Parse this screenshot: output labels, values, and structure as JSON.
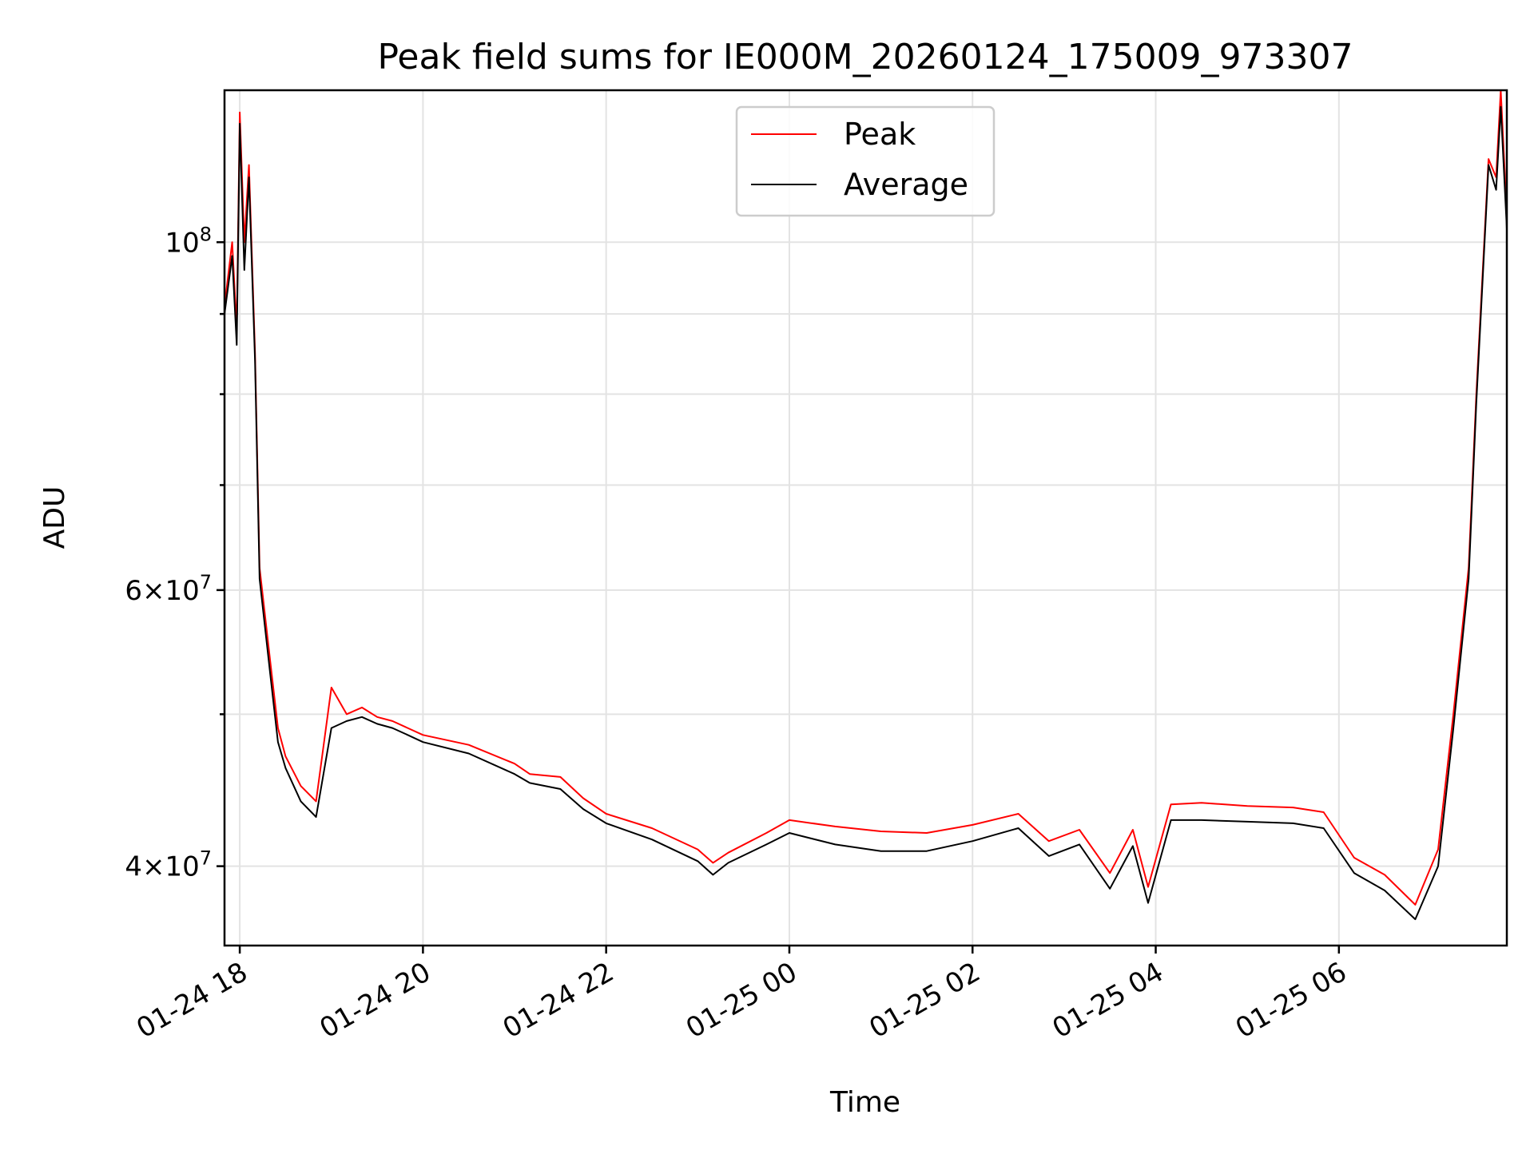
{
  "chart_data": {
    "type": "line",
    "title": "Peak field sums for IE000M_20260124_175009_973307",
    "xlabel": "Time",
    "ylabel": "ADU",
    "yscale": "log",
    "ylim": [
      35600000,
      125000000
    ],
    "xlim": [
      "2026-01-24 17:50",
      "2026-01-25 07:50"
    ],
    "x_ticks": [
      {
        "at": "2026-01-24 18:00",
        "label": "01-24 18"
      },
      {
        "at": "2026-01-24 20:00",
        "label": "01-24 20"
      },
      {
        "at": "2026-01-24 22:00",
        "label": "01-24 22"
      },
      {
        "at": "2026-01-25 00:00",
        "label": "01-25 00"
      },
      {
        "at": "2026-01-25 02:00",
        "label": "01-25 02"
      },
      {
        "at": "2026-01-25 04:00",
        "label": "01-25 04"
      },
      {
        "at": "2026-01-25 06:00",
        "label": "01-25 06"
      }
    ],
    "y_ticks": [
      {
        "value": 40000000,
        "mantissa": "4×10",
        "exp": "7"
      },
      {
        "value": 60000000,
        "mantissa": "6×10",
        "exp": "7"
      },
      {
        "value": 100000000,
        "mantissa": "10",
        "exp": "8"
      }
    ],
    "y_minor_ticks": [
      50000000,
      70000000,
      80000000,
      90000000
    ],
    "grid": true,
    "legend_position": "upper center",
    "series": [
      {
        "name": "Peak",
        "color": "#ff0000",
        "x": [
          "2026-01-24 17:50",
          "2026-01-24 17:55",
          "2026-01-24 17:58",
          "2026-01-24 18:00",
          "2026-01-24 18:03",
          "2026-01-24 18:06",
          "2026-01-24 18:10",
          "2026-01-24 18:13",
          "2026-01-24 18:20",
          "2026-01-24 18:25",
          "2026-01-24 18:30",
          "2026-01-24 18:40",
          "2026-01-24 18:50",
          "2026-01-24 19:00",
          "2026-01-24 19:10",
          "2026-01-24 19:20",
          "2026-01-24 19:30",
          "2026-01-24 19:40",
          "2026-01-24 19:50",
          "2026-01-24 20:00",
          "2026-01-24 20:30",
          "2026-01-24 21:00",
          "2026-01-24 21:10",
          "2026-01-24 21:30",
          "2026-01-24 21:45",
          "2026-01-24 22:00",
          "2026-01-24 22:30",
          "2026-01-24 23:00",
          "2026-01-24 23:10",
          "2026-01-24 23:20",
          "2026-01-24 23:45",
          "2026-01-25 00:00",
          "2026-01-25 00:30",
          "2026-01-25 01:00",
          "2026-01-25 01:30",
          "2026-01-25 02:00",
          "2026-01-25 02:30",
          "2026-01-25 02:50",
          "2026-01-25 03:10",
          "2026-01-25 03:30",
          "2026-01-25 03:45",
          "2026-01-25 03:55",
          "2026-01-25 04:10",
          "2026-01-25 04:30",
          "2026-01-25 05:00",
          "2026-01-25 05:30",
          "2026-01-25 05:50",
          "2026-01-25 06:10",
          "2026-01-25 06:30",
          "2026-01-25 06:50",
          "2026-01-25 07:05",
          "2026-01-25 07:15",
          "2026-01-25 07:25",
          "2026-01-25 07:30",
          "2026-01-25 07:38",
          "2026-01-25 07:43",
          "2026-01-25 07:46",
          "2026-01-25 07:50"
        ],
        "values": [
          91000000,
          100000000,
          88000000,
          121000000,
          100000000,
          112000000,
          85000000,
          62000000,
          54000000,
          49000000,
          47000000,
          45000000,
          44000000,
          52000000,
          50000000,
          50500000,
          49800000,
          49500000,
          49000000,
          48500000,
          47800000,
          46500000,
          45800000,
          45600000,
          44200000,
          43200000,
          42300000,
          41000000,
          40200000,
          40800000,
          42000000,
          42800000,
          42400000,
          42100000,
          42000000,
          42500000,
          43200000,
          41500000,
          42200000,
          39600000,
          42200000,
          38800000,
          43800000,
          43900000,
          43700000,
          43600000,
          43300000,
          40500000,
          39500000,
          37800000,
          41000000,
          50000000,
          62000000,
          80000000,
          113000000,
          110000000,
          125000000,
          104000000
        ]
      },
      {
        "name": "Average",
        "color": "#000000",
        "x": [
          "2026-01-24 17:50",
          "2026-01-24 17:55",
          "2026-01-24 17:58",
          "2026-01-24 18:00",
          "2026-01-24 18:03",
          "2026-01-24 18:06",
          "2026-01-24 18:10",
          "2026-01-24 18:13",
          "2026-01-24 18:20",
          "2026-01-24 18:25",
          "2026-01-24 18:30",
          "2026-01-24 18:40",
          "2026-01-24 18:50",
          "2026-01-24 19:00",
          "2026-01-24 19:10",
          "2026-01-24 19:20",
          "2026-01-24 19:30",
          "2026-01-24 19:40",
          "2026-01-24 19:50",
          "2026-01-24 20:00",
          "2026-01-24 20:30",
          "2026-01-24 21:00",
          "2026-01-24 21:10",
          "2026-01-24 21:30",
          "2026-01-24 21:45",
          "2026-01-24 22:00",
          "2026-01-24 22:30",
          "2026-01-24 23:00",
          "2026-01-24 23:10",
          "2026-01-24 23:20",
          "2026-01-24 23:45",
          "2026-01-25 00:00",
          "2026-01-25 00:30",
          "2026-01-25 01:00",
          "2026-01-25 01:30",
          "2026-01-25 02:00",
          "2026-01-25 02:30",
          "2026-01-25 02:50",
          "2026-01-25 03:10",
          "2026-01-25 03:30",
          "2026-01-25 03:45",
          "2026-01-25 03:55",
          "2026-01-25 04:10",
          "2026-01-25 04:30",
          "2026-01-25 05:00",
          "2026-01-25 05:30",
          "2026-01-25 05:50",
          "2026-01-25 06:10",
          "2026-01-25 06:30",
          "2026-01-25 06:50",
          "2026-01-25 07:05",
          "2026-01-25 07:15",
          "2026-01-25 07:25",
          "2026-01-25 07:30",
          "2026-01-25 07:38",
          "2026-01-25 07:43",
          "2026-01-25 07:46",
          "2026-01-25 07:50"
        ],
        "values": [
          90000000,
          98000000,
          86000000,
          119000000,
          96000000,
          110000000,
          84000000,
          61000000,
          53000000,
          48000000,
          46200000,
          44000000,
          43000000,
          49000000,
          49500000,
          49800000,
          49300000,
          49000000,
          48500000,
          48000000,
          47200000,
          45800000,
          45200000,
          44800000,
          43500000,
          42600000,
          41600000,
          40300000,
          39500000,
          40200000,
          41300000,
          42000000,
          41300000,
          40900000,
          40900000,
          41500000,
          42300000,
          40600000,
          41300000,
          38700000,
          41200000,
          37900000,
          42800000,
          42800000,
          42700000,
          42600000,
          42300000,
          39600000,
          38600000,
          37000000,
          40000000,
          49000000,
          61000000,
          79000000,
          112000000,
          108000000,
          122000000,
          102000000
        ]
      }
    ]
  }
}
